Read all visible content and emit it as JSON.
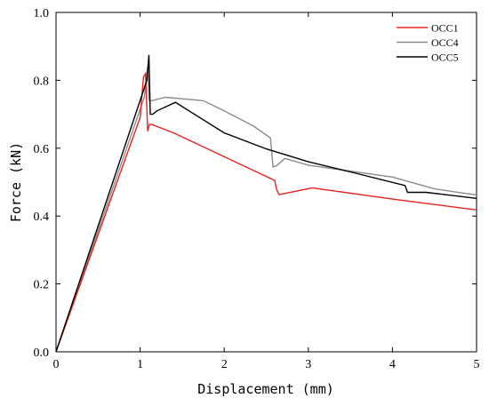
{
  "chart_data": {
    "type": "line",
    "xlabel": "Displacement (mm)",
    "ylabel": "Force (kN)",
    "xlim": [
      0,
      5
    ],
    "ylim": [
      0,
      1.0
    ],
    "xticks": [
      0,
      1,
      2,
      3,
      4,
      5
    ],
    "yticks": [
      0.0,
      0.2,
      0.4,
      0.6,
      0.8,
      1.0
    ],
    "xtick_labels": [
      "0",
      "1",
      "2",
      "3",
      "4",
      "5"
    ],
    "ytick_labels": [
      "0.0",
      "0.2",
      "0.4",
      "0.6",
      "0.8",
      "1.0"
    ],
    "grid": false,
    "legend_position": "top-right",
    "series": [
      {
        "name": "OCC1",
        "color": "#e8231f",
        "x": [
          0,
          1.0,
          1.04,
          1.065,
          1.09,
          1.11,
          1.14,
          1.4,
          2.0,
          2.6,
          2.62,
          2.65,
          3.05,
          4.0,
          5.0
        ],
        "y": [
          0,
          0.69,
          0.81,
          0.82,
          0.65,
          0.67,
          0.67,
          0.645,
          0.575,
          0.505,
          0.48,
          0.463,
          0.483,
          0.45,
          0.418
        ]
      },
      {
        "name": "OCC4",
        "color": "#8c8c8c",
        "x": [
          0,
          1.05,
          1.09,
          1.11,
          1.14,
          1.3,
          1.75,
          2.0,
          2.35,
          2.55,
          2.58,
          2.62,
          2.72,
          3.0,
          4.0,
          4.5,
          5.0
        ],
        "y": [
          0,
          0.75,
          0.84,
          0.74,
          0.74,
          0.75,
          0.74,
          0.71,
          0.665,
          0.63,
          0.545,
          0.548,
          0.57,
          0.55,
          0.515,
          0.48,
          0.462
        ]
      },
      {
        "name": "OCC5",
        "color": "#000000",
        "x": [
          0,
          1.08,
          1.105,
          1.12,
          1.15,
          1.2,
          1.42,
          2.0,
          2.5,
          3.0,
          3.5,
          4.15,
          4.18,
          4.4,
          5.0
        ],
        "y": [
          0,
          0.8,
          0.875,
          0.7,
          0.7,
          0.71,
          0.735,
          0.645,
          0.598,
          0.56,
          0.53,
          0.49,
          0.47,
          0.47,
          0.452
        ]
      }
    ]
  }
}
